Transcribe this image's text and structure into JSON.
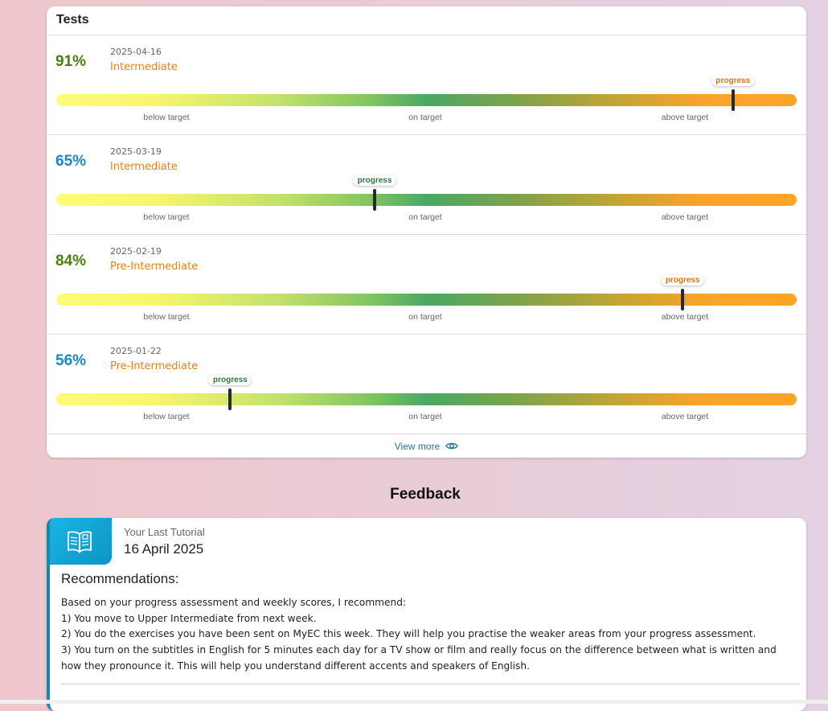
{
  "tests": {
    "title": "Tests",
    "scale_labels": [
      "below target",
      "on target",
      "above target"
    ],
    "marker_label": "progress",
    "rows": [
      {
        "score": "91%",
        "date": "2025-04-16",
        "level": "Intermediate",
        "progress": 0.914,
        "score_color": "#4a7f10",
        "pill_color": "#e07410"
      },
      {
        "score": "65%",
        "date": "2025-03-19",
        "level": "Intermediate",
        "progress": 0.43,
        "score_color": "#1f86c4",
        "pill_color": "#2e7a3c"
      },
      {
        "score": "84%",
        "date": "2025-02-19",
        "level": "Pre-Intermediate",
        "progress": 0.846,
        "score_color": "#4a7f10",
        "pill_color": "#e07410"
      },
      {
        "score": "56%",
        "date": "2025-01-22",
        "level": "Pre-Intermediate",
        "progress": 0.235,
        "score_color": "#1f86c4",
        "pill_color": "#2e7a3c"
      }
    ],
    "view_more_label": "View more",
    "view_more_icon": "eye-icon"
  },
  "feedback": {
    "heading": "Feedback",
    "icon": "open-book-icon",
    "tutorial_label": "Your Last Tutorial",
    "tutorial_date": "16 April 2025",
    "recommendations_title": "Recommendations:",
    "recommendations": [
      "Based on your progress assessment and weekly scores, I recommend:",
      "1) You move to Upper Intermediate from next week.",
      "2) You do the exercises you have been sent on MyEC this week. They will help you practise the weaker areas from your progress assessment.",
      "3) You turn on the subtitles in English for 5 minutes each day for a TV show or film and really focus on the difference between what is written and how they pronounce it. This will help you understand different accents and speakers of English."
    ]
  }
}
